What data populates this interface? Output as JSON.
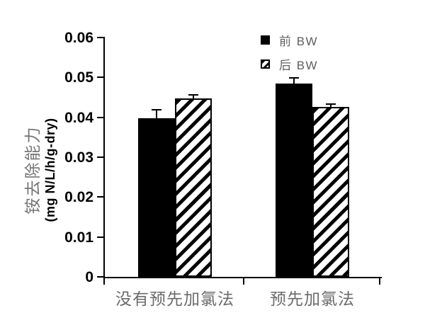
{
  "figure": {
    "y_axis_title_line1": "铵去除能力",
    "y_axis_title_line2": "(mg N/L/h/g-dry)"
  },
  "chart_data": {
    "type": "bar",
    "title": "",
    "categories": [
      "没有预先加氯法",
      "预先加氯法"
    ],
    "series": [
      {
        "name": "前 BW",
        "fill": "solid-black",
        "values": [
          0.0398,
          0.0484
        ],
        "errors_plus": [
          0.0019,
          0.0012
        ]
      },
      {
        "name": "后 BW",
        "fill": "diagonal-hatch",
        "values": [
          0.0447,
          0.0426
        ],
        "errors_plus": [
          0.0007,
          0.0005
        ]
      }
    ],
    "xlabel": "",
    "ylabel": "铵去除能力 (mg N/L/h/g-dry)",
    "ylim": [
      0,
      0.06
    ],
    "yticks": [
      0,
      0.01,
      0.02,
      0.03,
      0.04,
      0.05,
      0.06
    ],
    "ytick_labels": [
      "0",
      "0.01",
      "0.02",
      "0.03",
      "0.04",
      "0.05",
      "0.06"
    ],
    "legend_position": "top-right",
    "grid": false,
    "error_bars": "upper-only",
    "colors": {
      "bar_fill": "#000000",
      "axis": "#000000",
      "category_text": "#6b6b6b",
      "cjk_title_text": "#757575",
      "legend_text": "#5f5f5f",
      "background": "#ffffff"
    }
  }
}
